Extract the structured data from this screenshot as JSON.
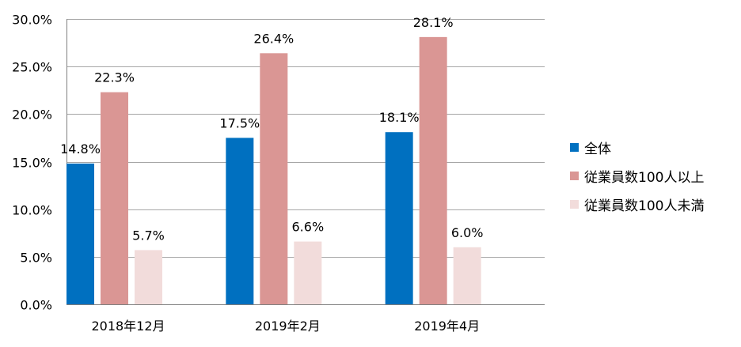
{
  "chart_data": {
    "type": "bar",
    "categories": [
      "2018年12月",
      "2019年2月",
      "2019年4月"
    ],
    "series": [
      {
        "name": "全体",
        "values": [
          14.8,
          17.5,
          18.1
        ],
        "color": "#0070C0"
      },
      {
        "name": "従業員数100人以上",
        "values": [
          22.3,
          26.4,
          28.1
        ],
        "color": "#DA9694"
      },
      {
        "name": "従業員数100人未満",
        "values": [
          5.7,
          6.6,
          6.0
        ],
        "color": "#F2DCDB"
      }
    ],
    "data_labels": [
      [
        "14.8%",
        "17.5%",
        "18.1%"
      ],
      [
        "22.3%",
        "26.4%",
        "28.1%"
      ],
      [
        "5.7%",
        "6.6%",
        "6.0%"
      ]
    ],
    "y_ticks": [
      0,
      5,
      10,
      15,
      20,
      25,
      30
    ],
    "y_tick_labels": [
      "0.0%",
      "5.0%",
      "10.0%",
      "15.0%",
      "20.0%",
      "25.0%",
      "30.0%"
    ],
    "ylim": [
      0,
      30
    ],
    "grid": true,
    "legend_position": "right",
    "title": "",
    "xlabel": "",
    "ylabel": ""
  }
}
